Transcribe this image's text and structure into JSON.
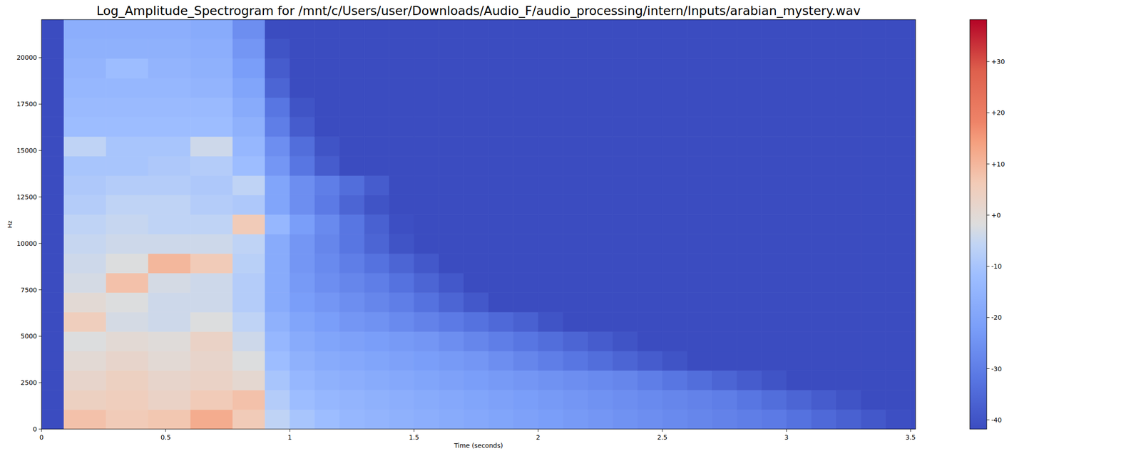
{
  "chart_data": {
    "type": "heatmap",
    "title": "Log_Amplitude_Spectrogram for /mnt/c/Users/user/Downloads/Audio_F/audio_processing/intern/Inputs/arabian_mystery.wav",
    "x_label": "Time (seconds)",
    "y_label": "Hz",
    "x": [
      0,
      0.09,
      0.26,
      0.43,
      0.6,
      0.77,
      0.9,
      1,
      1.1,
      1.2,
      1.3,
      1.4,
      1.5,
      1.6,
      1.7,
      1.8,
      1.9,
      2,
      2.1,
      2.2,
      2.3,
      2.4,
      2.5,
      2.6,
      2.7,
      2.8,
      2.9,
      3,
      3.1,
      3.2,
      3.3,
      3.4,
      3.5,
      3.52
    ],
    "y": [
      0,
      1050,
      2100,
      3150,
      4200,
      5250,
      6300,
      7350,
      8400,
      9450,
      10500,
      11550,
      12600,
      13650,
      14700,
      15750,
      16800,
      17850,
      18900,
      19950,
      21000,
      22050
    ],
    "values": [
      [
        -41.8,
        8,
        6,
        7,
        12,
        6,
        -6,
        -10,
        -12,
        -14,
        -15,
        -16,
        -17,
        -18,
        -19,
        -20,
        -21,
        -22,
        -23,
        -24,
        -25,
        -26,
        -27,
        -28,
        -29,
        -30,
        -31,
        -33,
        -35,
        -37,
        -39,
        -41,
        -41.8
      ],
      [
        -41.8,
        4,
        5,
        3,
        6,
        8,
        -8,
        -12,
        -14,
        -15,
        -16,
        -17,
        -18,
        -19,
        -20,
        -21,
        -22,
        -23,
        -24,
        -25,
        -26,
        -27,
        -28,
        -29,
        -30,
        -32,
        -34,
        -36,
        -38,
        -40,
        -41.8,
        -41.8,
        -41.8
      ],
      [
        -41.8,
        2,
        4,
        2,
        3,
        1,
        -10,
        -14,
        -16,
        -17,
        -18,
        -19,
        -20,
        -21,
        -22,
        -23,
        -24,
        -25,
        -26,
        -27,
        -28,
        -30,
        -32,
        -34,
        -36,
        -38,
        -40,
        -41.8,
        -41.8,
        -41.8,
        -41.8,
        -41.8,
        -41.8
      ],
      [
        -41.8,
        0,
        2,
        0,
        2,
        -2,
        -12,
        -16,
        -18,
        -19,
        -20,
        -21,
        -22,
        -23,
        -24,
        -26,
        -28,
        -30,
        -32,
        -34,
        -36,
        -38,
        -40,
        -41.8,
        -41.8,
        -41.8,
        -41.8,
        -41.8,
        -41.8,
        -41.8,
        -41.8,
        -41.8,
        -41.8
      ],
      [
        -41.8,
        -2,
        0,
        -1,
        3,
        -4,
        -14,
        -18,
        -20,
        -21,
        -22,
        -23,
        -24,
        -26,
        -28,
        -30,
        -32,
        -34,
        -36,
        -38,
        -40,
        -41.8,
        -41.8,
        -41.8,
        -41.8,
        -41.8,
        -41.8,
        -41.8,
        -41.8,
        -41.8,
        -41.8,
        -41.8,
        -41.8
      ],
      [
        -41.8,
        5,
        -3,
        -4,
        -2,
        -6,
        -16,
        -20,
        -22,
        -24,
        -25,
        -27,
        -29,
        -31,
        -33,
        -35,
        -37,
        -40,
        -41.8,
        -41.8,
        -41.8,
        -41.8,
        -41.8,
        -41.8,
        -41.8,
        -41.8,
        -41.8,
        -41.8,
        -41.8,
        -41.8,
        -41.8,
        -41.8,
        -41.8
      ],
      [
        -41.8,
        0,
        -2,
        -4,
        -4,
        -8,
        -18,
        -22,
        -24,
        -26,
        -28,
        -30,
        -33,
        -36,
        -39,
        -41.8,
        -41.8,
        -41.8,
        -41.8,
        -41.8,
        -41.8,
        -41.8,
        -41.8,
        -41.8,
        -41.8,
        -41.8,
        -41.8,
        -41.8,
        -41.8,
        -41.8,
        -41.8,
        -41.8,
        -41.8
      ],
      [
        -41.8,
        -3,
        8,
        -3,
        -4,
        -8,
        -18,
        -23,
        -26,
        -28,
        -30,
        -33,
        -36,
        -39,
        -41.8,
        -41.8,
        -41.8,
        -41.8,
        -41.8,
        -41.8,
        -41.8,
        -41.8,
        -41.8,
        -41.8,
        -41.8,
        -41.8,
        -41.8,
        -41.8,
        -41.8,
        -41.8,
        -41.8,
        -41.8,
        -41.8
      ],
      [
        -41.8,
        -4,
        -2,
        10,
        6,
        -7,
        -18,
        -24,
        -27,
        -30,
        -33,
        -36,
        -39,
        -41.8,
        -41.8,
        -41.8,
        -41.8,
        -41.8,
        -41.8,
        -41.8,
        -41.8,
        -41.8,
        -41.8,
        -41.8,
        -41.8,
        -41.8,
        -41.8,
        -41.8,
        -41.8,
        -41.8,
        -41.8,
        -41.8,
        -41.8
      ],
      [
        -41.8,
        -5,
        -4,
        -4,
        -4,
        -6,
        -18,
        -24,
        -28,
        -32,
        -36,
        -40,
        -41.8,
        -41.8,
        -41.8,
        -41.8,
        -41.8,
        -41.8,
        -41.8,
        -41.8,
        -41.8,
        -41.8,
        -41.8,
        -41.8,
        -41.8,
        -41.8,
        -41.8,
        -41.8,
        -41.8,
        -41.8,
        -41.8,
        -41.8,
        -41.8
      ],
      [
        -41.8,
        -6,
        -5,
        -6,
        -6,
        6,
        -14,
        -22,
        -27,
        -32,
        -37,
        -41,
        -41.8,
        -41.8,
        -41.8,
        -41.8,
        -41.8,
        -41.8,
        -41.8,
        -41.8,
        -41.8,
        -41.8,
        -41.8,
        -41.8,
        -41.8,
        -41.8,
        -41.8,
        -41.8,
        -41.8,
        -41.8,
        -41.8,
        -41.8,
        -41.8
      ],
      [
        -41.8,
        -8,
        -6,
        -6,
        -8,
        -9,
        -20,
        -26,
        -31,
        -36,
        -40,
        -41.8,
        -41.8,
        -41.8,
        -41.8,
        -41.8,
        -41.8,
        -41.8,
        -41.8,
        -41.8,
        -41.8,
        -41.8,
        -41.8,
        -41.8,
        -41.8,
        -41.8,
        -41.8,
        -41.8,
        -41.8,
        -41.8,
        -41.8,
        -41.8,
        -41.8
      ],
      [
        -41.8,
        -9,
        -8,
        -8,
        -9,
        -6,
        -20,
        -26,
        -30,
        -34,
        -38,
        -41.8,
        -41.8,
        -41.8,
        -41.8,
        -41.8,
        -41.8,
        -41.8,
        -41.8,
        -41.8,
        -41.8,
        -41.8,
        -41.8,
        -41.8,
        -41.8,
        -41.8,
        -41.8,
        -41.8,
        -41.8,
        -41.8,
        -41.8,
        -41.8,
        -41.8
      ],
      [
        -41.8,
        -10,
        -10,
        -9,
        -8,
        -12,
        -24,
        -32,
        -38,
        -41.8,
        -41.8,
        -41.8,
        -41.8,
        -41.8,
        -41.8,
        -41.8,
        -41.8,
        -41.8,
        -41.8,
        -41.8,
        -41.8,
        -41.8,
        -41.8,
        -41.8,
        -41.8,
        -41.8,
        -41.8,
        -41.8,
        -41.8,
        -41.8,
        -41.8,
        -41.8,
        -41.8
      ],
      [
        -41.8,
        -6,
        -10,
        -10,
        -4,
        -14,
        -26,
        -34,
        -40,
        -41.8,
        -41.8,
        -41.8,
        -41.8,
        -41.8,
        -41.8,
        -41.8,
        -41.8,
        -41.8,
        -41.8,
        -41.8,
        -41.8,
        -41.8,
        -41.8,
        -41.8,
        -41.8,
        -41.8,
        -41.8,
        -41.8,
        -41.8,
        -41.8,
        -41.8,
        -41.8,
        -41.8
      ],
      [
        -41.8,
        -12,
        -12,
        -12,
        -12,
        -16,
        -30,
        -38,
        -41.8,
        -41.8,
        -41.8,
        -41.8,
        -41.8,
        -41.8,
        -41.8,
        -41.8,
        -41.8,
        -41.8,
        -41.8,
        -41.8,
        -41.8,
        -41.8,
        -41.8,
        -41.8,
        -41.8,
        -41.8,
        -41.8,
        -41.8,
        -41.8,
        -41.8,
        -41.8,
        -41.8,
        -41.8
      ],
      [
        -41.8,
        -13,
        -13,
        -13,
        -13,
        -18,
        -32,
        -40,
        -41.8,
        -41.8,
        -41.8,
        -41.8,
        -41.8,
        -41.8,
        -41.8,
        -41.8,
        -41.8,
        -41.8,
        -41.8,
        -41.8,
        -41.8,
        -41.8,
        -41.8,
        -41.8,
        -41.8,
        -41.8,
        -41.8,
        -41.8,
        -41.8,
        -41.8,
        -41.8,
        -41.8,
        -41.8
      ],
      [
        -41.8,
        -14,
        -14,
        -14,
        -15,
        -20,
        -36,
        -41.8,
        -41.8,
        -41.8,
        -41.8,
        -41.8,
        -41.8,
        -41.8,
        -41.8,
        -41.8,
        -41.8,
        -41.8,
        -41.8,
        -41.8,
        -41.8,
        -41.8,
        -41.8,
        -41.8,
        -41.8,
        -41.8,
        -41.8,
        -41.8,
        -41.8,
        -41.8,
        -41.8,
        -41.8,
        -41.8
      ],
      [
        -41.8,
        -15,
        -12,
        -15,
        -16,
        -22,
        -38,
        -41.8,
        -41.8,
        -41.8,
        -41.8,
        -41.8,
        -41.8,
        -41.8,
        -41.8,
        -41.8,
        -41.8,
        -41.8,
        -41.8,
        -41.8,
        -41.8,
        -41.8,
        -41.8,
        -41.8,
        -41.8,
        -41.8,
        -41.8,
        -41.8,
        -41.8,
        -41.8,
        -41.8,
        -41.8,
        -41.8
      ],
      [
        -41.8,
        -16,
        -16,
        -16,
        -17,
        -24,
        -40,
        -41.8,
        -41.8,
        -41.8,
        -41.8,
        -41.8,
        -41.8,
        -41.8,
        -41.8,
        -41.8,
        -41.8,
        -41.8,
        -41.8,
        -41.8,
        -41.8,
        -41.8,
        -41.8,
        -41.8,
        -41.8,
        -41.8,
        -41.8,
        -41.8,
        -41.8,
        -41.8,
        -41.8,
        -41.8,
        -41.8
      ],
      [
        -41.8,
        -17,
        -17,
        -17,
        -18,
        -26,
        -41.8,
        -41.8,
        -41.8,
        -41.8,
        -41.8,
        -41.8,
        -41.8,
        -41.8,
        -41.8,
        -41.8,
        -41.8,
        -41.8,
        -41.8,
        -41.8,
        -41.8,
        -41.8,
        -41.8,
        -41.8,
        -41.8,
        -41.8,
        -41.8,
        -41.8,
        -41.8,
        -41.8,
        -41.8,
        -41.8,
        -41.8
      ]
    ],
    "xlim": [
      0,
      3.52
    ],
    "ylim": [
      0,
      22050
    ],
    "xticks": [
      0,
      0.5,
      1,
      1.5,
      2,
      2.5,
      3,
      3.5
    ],
    "yticks": [
      0,
      2500,
      5000,
      7500,
      10000,
      12500,
      15000,
      17500,
      20000
    ],
    "colorbar_range": [
      -41.8,
      38.2
    ],
    "colorbar_ticks": [
      -40,
      -30,
      -20,
      -10,
      {
        "value": 0,
        "label": "+0"
      },
      {
        "value": 10,
        "label": "+10"
      },
      {
        "value": 20,
        "label": "+20"
      },
      {
        "value": 30,
        "label": "+30"
      }
    ]
  }
}
